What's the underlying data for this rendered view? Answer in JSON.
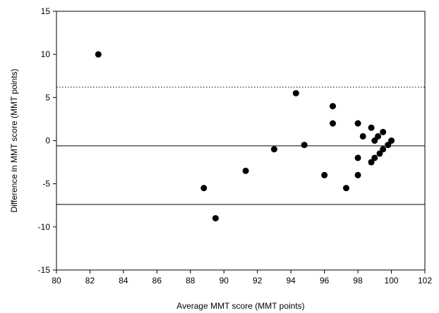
{
  "chart_data": {
    "type": "scatter",
    "title": "",
    "xlabel": "Average MMT score (MMT points)",
    "ylabel": "Difference in MMT score (MMT points)",
    "xlim": [
      80,
      102
    ],
    "ylim": [
      -15,
      15
    ],
    "xticks": [
      80,
      82,
      84,
      86,
      88,
      90,
      92,
      94,
      96,
      98,
      100,
      102
    ],
    "yticks": [
      -15,
      -10,
      -5,
      0,
      5,
      10,
      15
    ],
    "grid": false,
    "legend": "none",
    "marker_color": "#000000",
    "series": [
      {
        "x": [
          82.5,
          88.8,
          89.5,
          91.3,
          93.0,
          94.3,
          94.8,
          96.0,
          96.5,
          96.5,
          97.3,
          98.0,
          98.0,
          98.0,
          98.3,
          98.8,
          98.8,
          99.0,
          99.0,
          99.2,
          99.3,
          99.5,
          99.5,
          99.8,
          100.0
        ],
        "y": [
          10,
          -5.5,
          -9,
          -3.5,
          -1,
          5.5,
          -0.5,
          -4,
          4,
          2,
          -5.5,
          2,
          -2,
          -4,
          0.5,
          1.5,
          -2.5,
          0,
          -2,
          0.5,
          -1.5,
          1,
          -1,
          -0.5,
          0
        ]
      }
    ],
    "reference_lines": [
      {
        "kind": "mean",
        "y": -0.6,
        "style": "solid"
      },
      {
        "kind": "lower-limit",
        "y": -7.4,
        "style": "solid"
      },
      {
        "kind": "upper-limit",
        "y": 6.2,
        "style": "dotted"
      }
    ]
  }
}
